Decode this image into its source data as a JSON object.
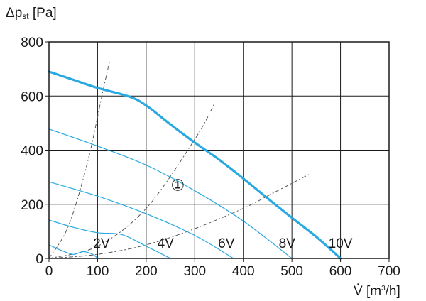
{
  "chart_data": {
    "type": "line",
    "title": "",
    "ylabel": {
      "main": "Δp",
      "sub": "st",
      "unit": " [Pa]"
    },
    "xlabel": {
      "main": "V̇",
      "unit_pre": " [m",
      "unit_sup": "3",
      "unit_post": "/h]"
    },
    "xlim": [
      0,
      700
    ],
    "ylim": [
      0,
      800
    ],
    "x_ticks": [
      0,
      100,
      200,
      300,
      400,
      500,
      600,
      700
    ],
    "y_ticks": [
      0,
      200,
      400,
      600,
      800
    ],
    "x_tick_labels": [
      "0",
      "100",
      "200",
      "300",
      "400",
      "500",
      "600",
      "700"
    ],
    "y_tick_labels": [
      "0",
      "200",
      "400",
      "600",
      "800"
    ],
    "grid": true,
    "series": [
      {
        "label": "10V",
        "color": "#29a9e1",
        "width": "thick",
        "x": [
          0,
          50,
          100,
          165,
          200,
          250,
          300,
          350,
          400,
          450,
          500,
          550,
          600
        ],
        "y": [
          690,
          660,
          630,
          598,
          565,
          495,
          428,
          365,
          295,
          222,
          150,
          80,
          0
        ]
      },
      {
        "label": "8V",
        "color": "#29a9e1",
        "width": "thin",
        "x": [
          0,
          100,
          200,
          300,
          400,
          500
        ],
        "y": [
          478,
          415,
          345,
          250,
          138,
          0
        ]
      },
      {
        "label": "6V",
        "color": "#29a9e1",
        "width": "thin",
        "x": [
          0,
          100,
          200,
          300,
          380
        ],
        "y": [
          283,
          230,
          165,
          85,
          0
        ]
      },
      {
        "label": "4V",
        "color": "#29a9e1",
        "width": "thin",
        "x": [
          0,
          50,
          100,
          150,
          200,
          250
        ],
        "y": [
          142,
          115,
          95,
          88,
          45,
          0
        ]
      },
      {
        "label": "2V",
        "color": "#29a9e1",
        "width": "thin",
        "x": [
          0,
          25,
          50,
          70,
          90,
          100
        ],
        "y": [
          50,
          30,
          15,
          25,
          15,
          0
        ]
      }
    ],
    "system_curves": [
      {
        "x": [
          0,
          40,
          80,
          110,
          125
        ],
        "y": [
          0,
          120,
          360,
          610,
          730
        ]
      },
      {
        "x": [
          0,
          100,
          200,
          300,
          340
        ],
        "y": [
          0,
          45,
          185,
          440,
          570
        ]
      },
      {
        "x": [
          0,
          100,
          200,
          300,
          400,
          465,
          535
        ],
        "y": [
          0,
          15,
          50,
          110,
          185,
          245,
          310
        ]
      }
    ],
    "annotations": [
      {
        "text": "2V",
        "x": 108,
        "y": 40
      },
      {
        "text": "4V",
        "x": 240,
        "y": 40
      },
      {
        "text": "6V",
        "x": 365,
        "y": 40
      },
      {
        "text": "8V",
        "x": 490,
        "y": 40
      },
      {
        "text": "10V",
        "x": 600,
        "y": 40
      },
      {
        "text": "①",
        "x": 265,
        "y": 250
      }
    ]
  }
}
